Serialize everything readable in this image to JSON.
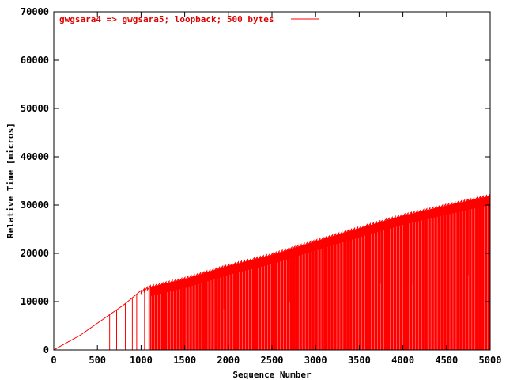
{
  "chart_data": {
    "type": "line",
    "title": "",
    "xlabel": "Sequence Number",
    "ylabel": "Relative Time [micros]",
    "xlim": [
      0,
      5000
    ],
    "ylim": [
      0,
      70000
    ],
    "xticks": [
      "0",
      "500",
      "1000",
      "1500",
      "2000",
      "2500",
      "3000",
      "3500",
      "4000",
      "4500",
      "5000"
    ],
    "yticks": [
      "0",
      "10000",
      "20000",
      "30000",
      "40000",
      "50000",
      "60000",
      "70000"
    ],
    "grid": false,
    "legend_position": "top-left",
    "series": [
      {
        "name": "gwgsara4 => gwgsara5; loopback; 500 bytes",
        "color": "#ff0000",
        "envelope": {
          "x": [
            0,
            300,
            600,
            800,
            1000,
            1100,
            1500,
            2000,
            2500,
            3000,
            3500,
            4000,
            4500,
            5000
          ],
          "y": [
            0,
            3000,
            6800,
            9300,
            12300,
            13300,
            15000,
            17700,
            20000,
            22800,
            25500,
            28100,
            30200,
            32200
          ]
        },
        "period": 36,
        "dips": [
          {
            "x": 640,
            "y": 0
          },
          {
            "x": 720,
            "y": 0
          },
          {
            "x": 820,
            "y": 0
          },
          {
            "x": 900,
            "y": 0
          },
          {
            "x": 950,
            "y": 0
          },
          {
            "x": 1040,
            "y": 0
          },
          {
            "x": 1090,
            "y": 0
          },
          {
            "x": 1110,
            "y": 0
          },
          {
            "x": 1140,
            "y": 0
          },
          {
            "x": 1240,
            "y": 0
          },
          {
            "x": 1400,
            "y": 0
          },
          {
            "x": 1730,
            "y": 0
          },
          {
            "x": 1900,
            "y": 9000
          },
          {
            "x": 1950,
            "y": 8500
          },
          {
            "x": 2010,
            "y": 9000
          },
          {
            "x": 2330,
            "y": 0
          },
          {
            "x": 2360,
            "y": 9700
          },
          {
            "x": 2400,
            "y": 9700
          },
          {
            "x": 2500,
            "y": 0
          },
          {
            "x": 2700,
            "y": 10000
          },
          {
            "x": 2760,
            "y": 0
          },
          {
            "x": 3100,
            "y": 0
          },
          {
            "x": 3750,
            "y": 13700
          },
          {
            "x": 4100,
            "y": 13700
          },
          {
            "x": 4200,
            "y": 0
          },
          {
            "x": 4750,
            "y": 15500
          }
        ]
      }
    ]
  }
}
